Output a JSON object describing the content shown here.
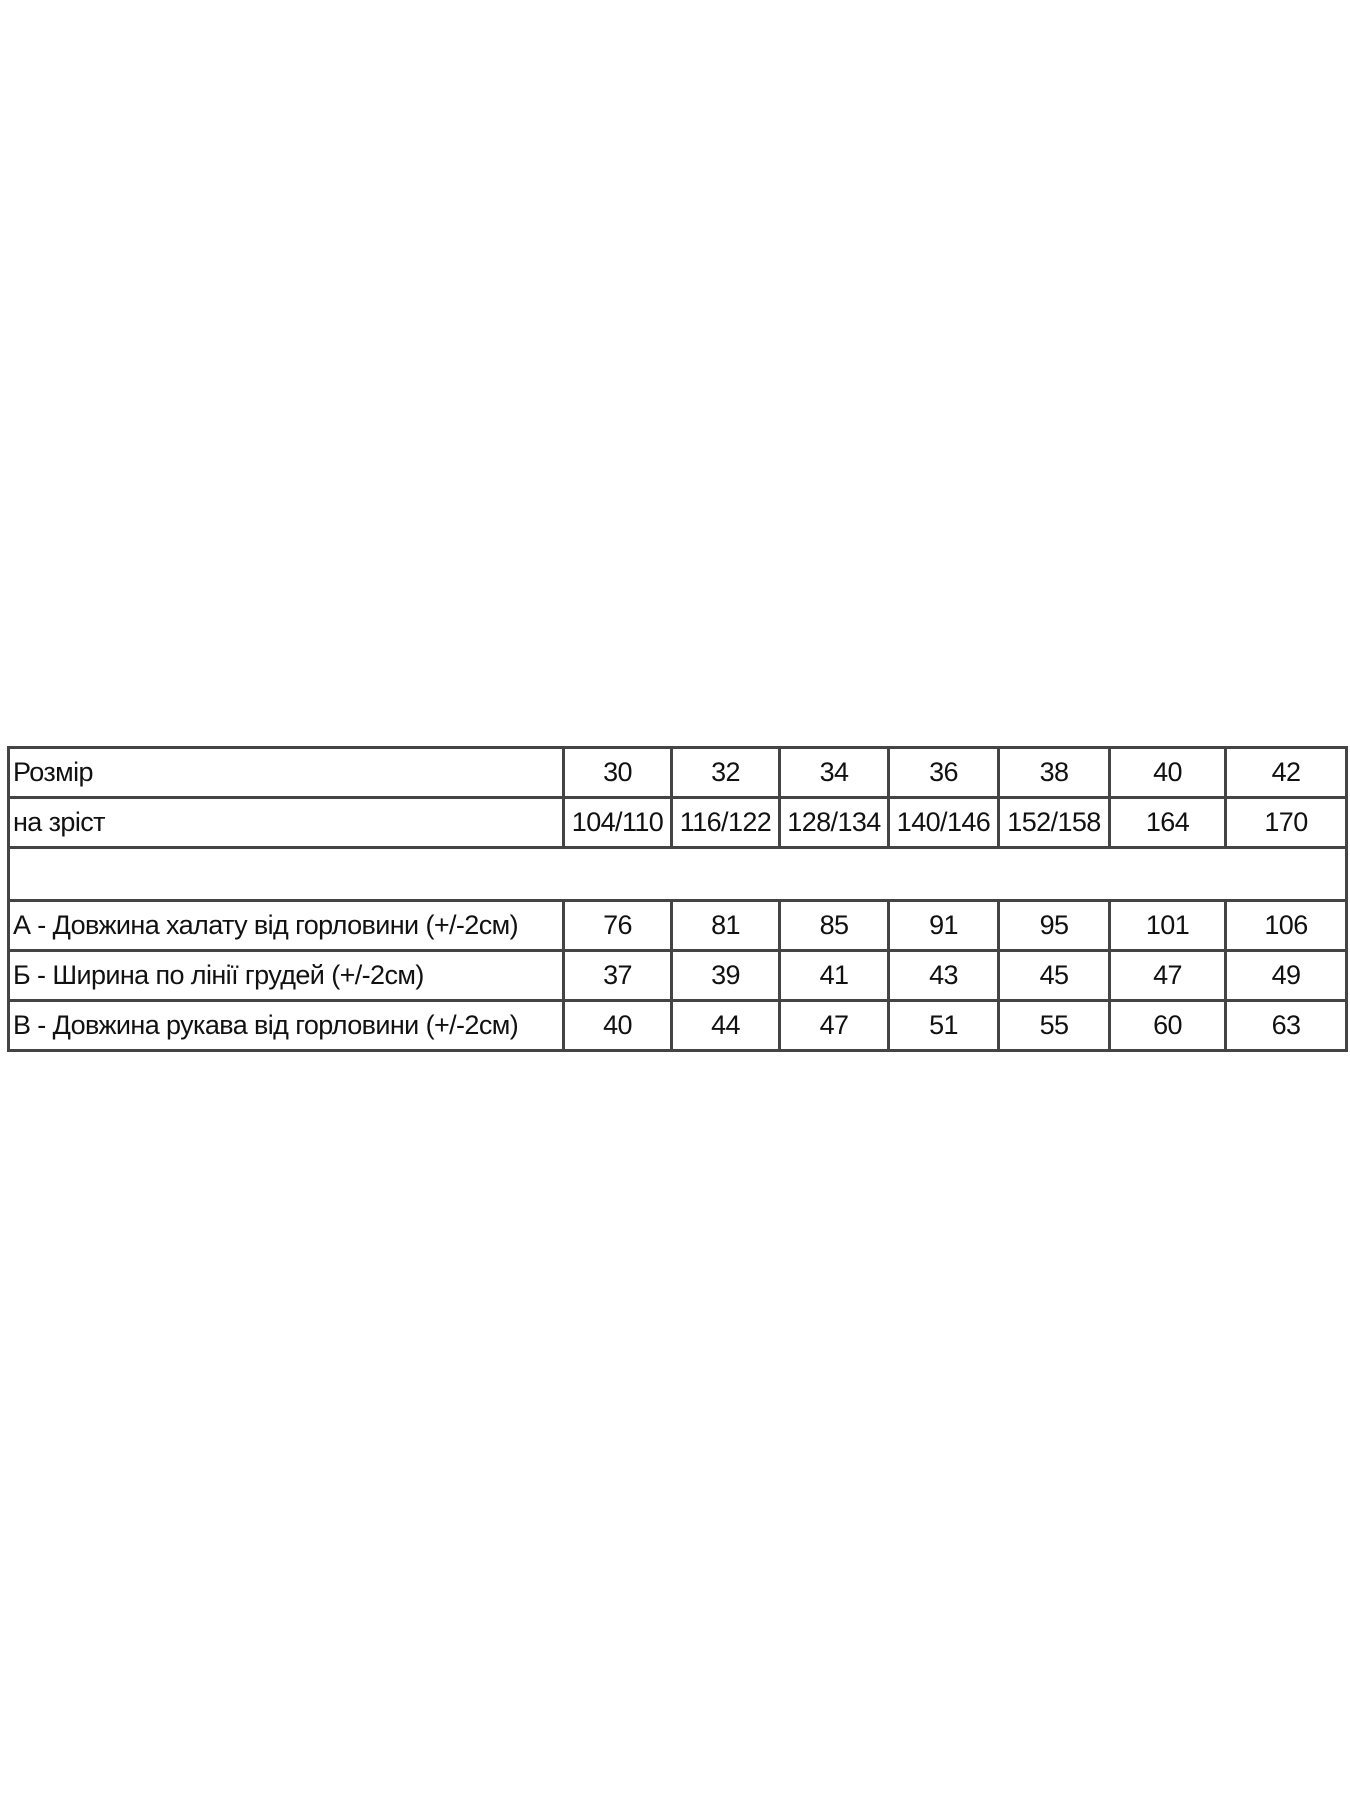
{
  "table": {
    "header": {
      "label": "Розмір",
      "sizes": [
        "30",
        "32",
        "34",
        "36",
        "38",
        "40",
        "42"
      ]
    },
    "height_row": {
      "label": "на зріст",
      "values": [
        "104/110",
        "116/122",
        "128/134",
        "140/146",
        "152/158",
        "164",
        "170"
      ]
    },
    "rows": [
      {
        "label": "А - Довжина халату від горловини (+/-2см)",
        "values": [
          "76",
          "81",
          "85",
          "91",
          "95",
          "101",
          "106"
        ]
      },
      {
        "label": "Б - Ширина по лінії грудей (+/-2см)",
        "values": [
          "37",
          "39",
          "41",
          "43",
          "45",
          "47",
          "49"
        ]
      },
      {
        "label": "В - Довжина рукава від горловини (+/-2см)",
        "values": [
          "40",
          "44",
          "47",
          "51",
          "55",
          "60",
          "63"
        ]
      }
    ]
  }
}
